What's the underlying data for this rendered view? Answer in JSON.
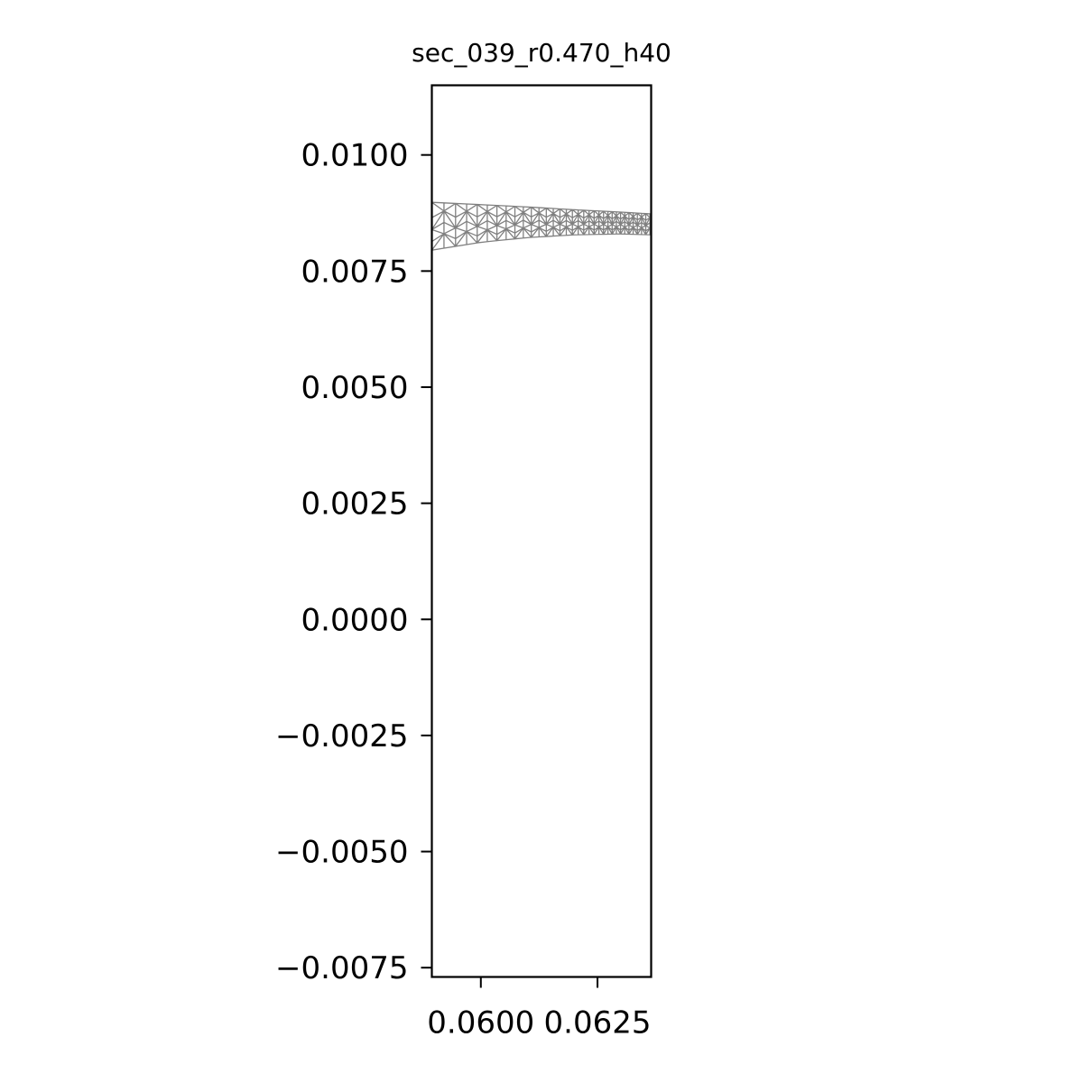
{
  "chart_data": {
    "type": "mesh",
    "title": "sec_039_r0.470_h40",
    "xlabel": "",
    "ylabel": "",
    "xlim": [
      0.05895,
      0.06365
    ],
    "ylim": [
      -0.0077,
      0.0115
    ],
    "grid": false,
    "x_ticks": [
      {
        "value": 0.06,
        "label": "0.0600"
      },
      {
        "value": 0.0625,
        "label": "0.0625"
      }
    ],
    "y_ticks": [
      {
        "value": 0.01,
        "label": "0.0100"
      },
      {
        "value": 0.0075,
        "label": "0.0075"
      },
      {
        "value": 0.005,
        "label": "0.0050"
      },
      {
        "value": 0.0025,
        "label": "0.0025"
      },
      {
        "value": 0.0,
        "label": "0.0000"
      },
      {
        "value": -0.0025,
        "label": "−0.0025"
      },
      {
        "value": -0.005,
        "label": "−0.0050"
      },
      {
        "value": -0.0075,
        "label": "−0.0075"
      }
    ],
    "mesh": {
      "color": "#808080",
      "upper_edge": [
        [
          0.05895,
          0.00898
        ],
        [
          0.06,
          0.00893
        ],
        [
          0.061,
          0.00888
        ],
        [
          0.062,
          0.00882
        ],
        [
          0.063,
          0.00877
        ],
        [
          0.06365,
          0.00873
        ]
      ],
      "lower_edge": [
        [
          0.05895,
          0.00795
        ],
        [
          0.06,
          0.00812
        ],
        [
          0.061,
          0.00822
        ],
        [
          0.062,
          0.00828
        ],
        [
          0.063,
          0.0083
        ],
        [
          0.06365,
          0.00828
        ]
      ]
    }
  }
}
